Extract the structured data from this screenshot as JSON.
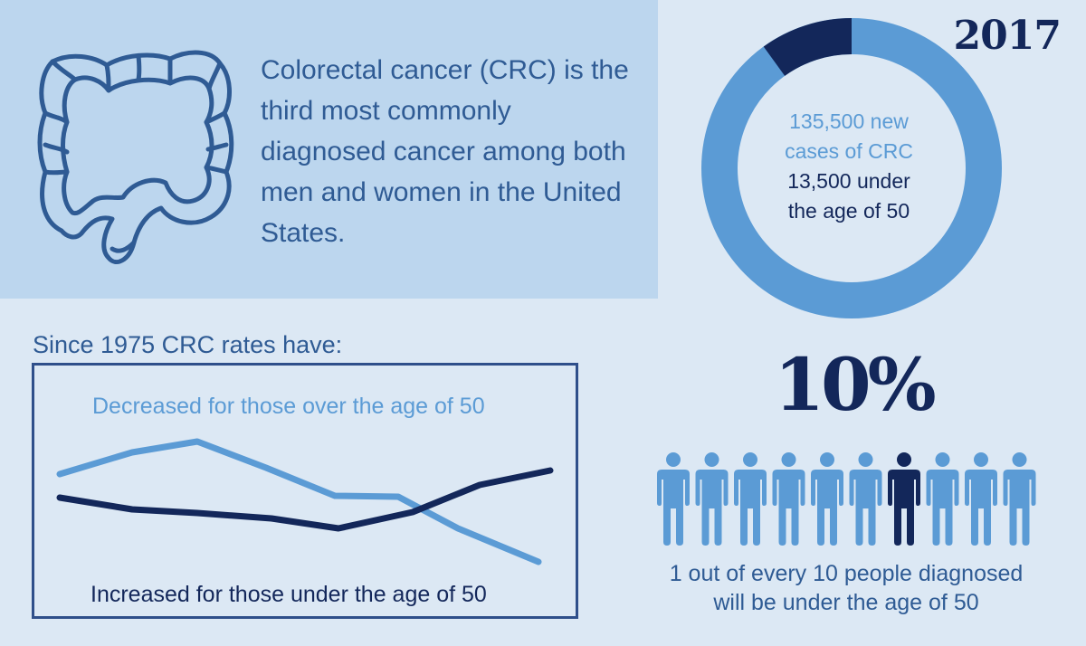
{
  "intro": {
    "text": "Colorectal cancer (CRC) is the third most commonly diagnosed cancer among both men and women in the United States."
  },
  "donut": {
    "year": "2017",
    "line1": "135,500 new",
    "line2": "cases of CRC",
    "line3": "13,500 under",
    "line4": "the age of 50",
    "total": 135500,
    "under_50": 13500,
    "colors": {
      "light": "#5b9bd5",
      "dark": "#13275a"
    }
  },
  "rates": {
    "title": "Since 1975 CRC rates have:",
    "decreased_label": "Decreased for those over the age of 50",
    "increased_label": "Increased for those under the age of 50"
  },
  "stat": {
    "percent": "10%",
    "people_total": 10,
    "people_highlight_index": 6,
    "caption_line1": "1 out of every 10 people diagnosed",
    "caption_line2": "will be under the age of 50"
  }
}
